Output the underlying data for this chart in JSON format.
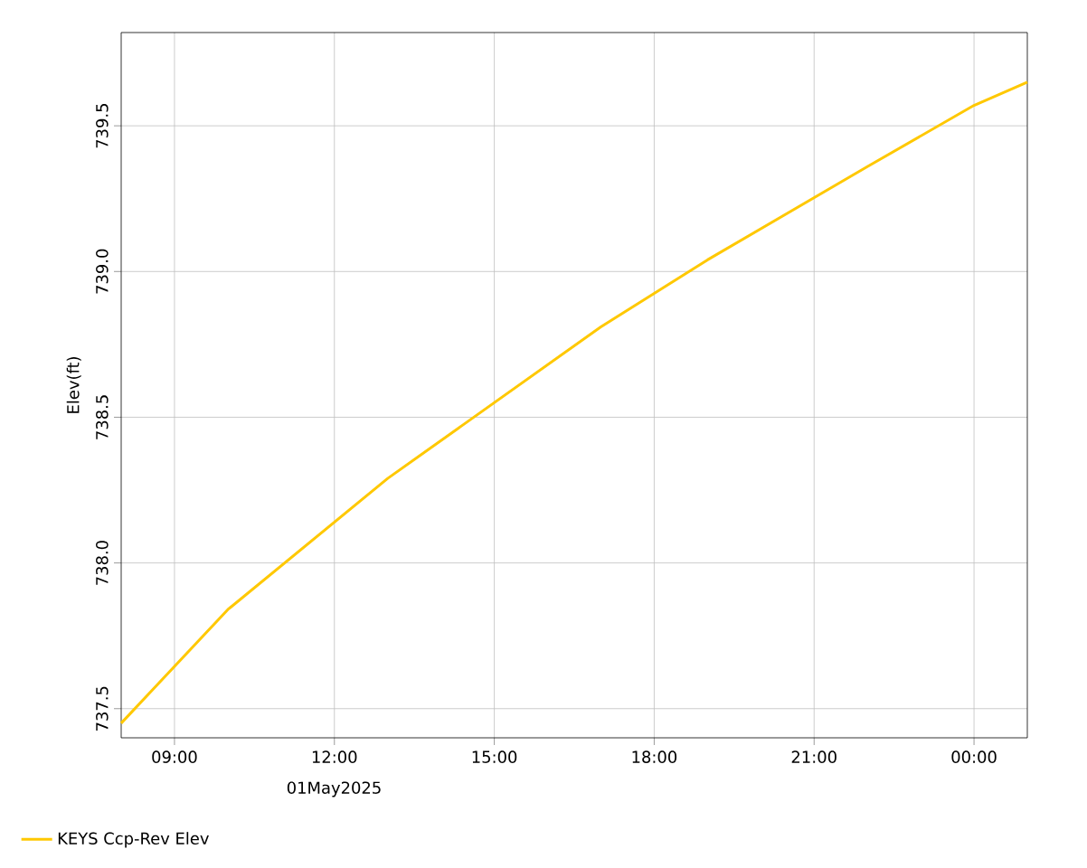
{
  "chart_data": {
    "type": "line",
    "ylabel": "Elev(ft)",
    "x": [
      8,
      10,
      13,
      17,
      19,
      22,
      24,
      25
    ],
    "series": [
      {
        "name": "KEYS Ccp-Rev Elev",
        "color": "#ffc800",
        "values": [
          737.45,
          737.84,
          738.29,
          738.81,
          739.04,
          739.36,
          739.57,
          739.65
        ]
      }
    ],
    "xlim": [
      8,
      25
    ],
    "xticks": [
      {
        "value": 9,
        "label": "09:00"
      },
      {
        "value": 12,
        "label": "12:00"
      },
      {
        "value": 15,
        "label": "15:00"
      },
      {
        "value": 18,
        "label": "18:00"
      },
      {
        "value": 21,
        "label": "21:00"
      },
      {
        "value": 24,
        "label": "00:00"
      }
    ],
    "ylim": [
      737.4,
      739.82
    ],
    "yticks": [
      737.5,
      {
        "value": 738.0,
        "label": "738.0"
      },
      738.5,
      {
        "value": 739.0,
        "label": "739.0"
      },
      739.5
    ],
    "annotations": [
      "01May2025"
    ],
    "grid": true,
    "legend": "bottom left",
    "marker": "none",
    "line_style": "solid"
  }
}
